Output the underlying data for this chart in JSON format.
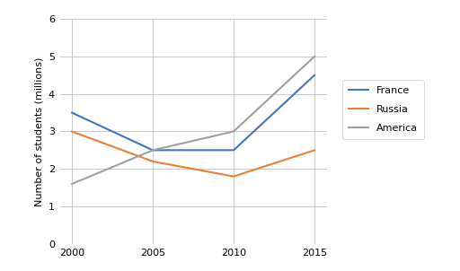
{
  "years": [
    2000,
    2005,
    2010,
    2015
  ],
  "france": [
    3.5,
    2.5,
    2.5,
    4.5
  ],
  "russia": [
    3.0,
    2.2,
    1.8,
    2.5
  ],
  "america": [
    1.6,
    2.5,
    3.0,
    5.0
  ],
  "france_color": "#4472C4",
  "russia_color": "#ED7D31",
  "america_color": "#A0A0A0",
  "ylabel": "Number of students (millions)",
  "ylim": [
    0,
    6
  ],
  "yticks": [
    0,
    1,
    2,
    3,
    4,
    5,
    6
  ],
  "xticks": [
    2000,
    2005,
    2010,
    2015
  ],
  "legend_labels": [
    "France",
    "Russia",
    "America"
  ],
  "background_color": "#ffffff",
  "grid_color": "#c0c0c0"
}
